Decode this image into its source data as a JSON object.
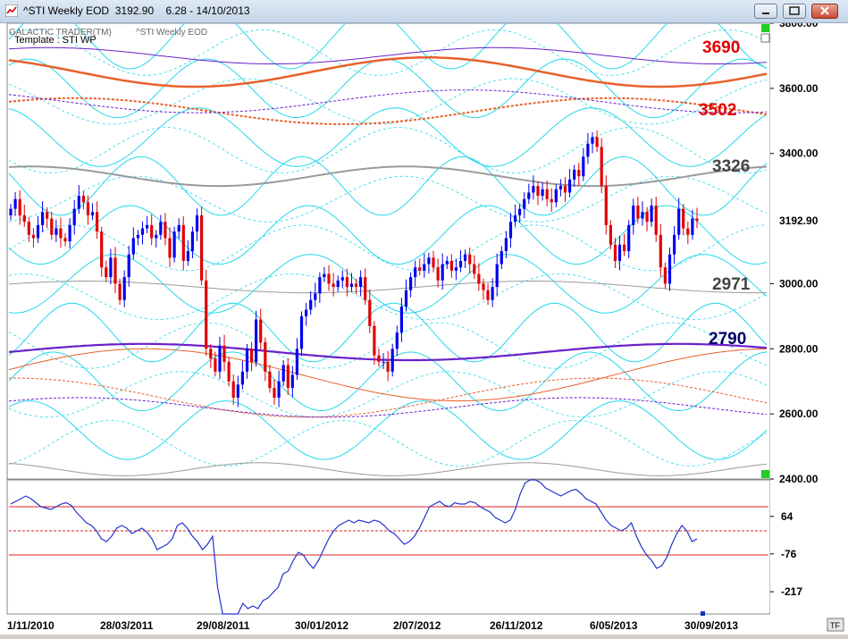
{
  "window": {
    "title": "^STI Weekly EOD  3192.90    6.28 - 14/10/2013",
    "minimize_label": "minimize",
    "maximize_label": "maximize",
    "close_label": "close"
  },
  "chart_header": {
    "brand": "GALACTIC TRADER(TM)",
    "series_name": "^STI Weekly EOD",
    "template": "Template : STI WP"
  },
  "colors": {
    "up_bar": "#0000ee",
    "down_bar": "#e00000",
    "cycle_cyan": "#22d8ea",
    "orange": "#e8602a",
    "purple": "#6a1fc9",
    "gray": "#9a9a9a",
    "osc_line": "#2233cc",
    "ob_os_line": "#dd2222",
    "accent_green": "#22cc22"
  },
  "labels": {
    "l3690": "3690",
    "l3502": "3502",
    "l3326": "3326",
    "l2971": "2971",
    "l2790": "2790",
    "price_current": "3192.90",
    "corner_tf": "TF"
  },
  "chart_data": [
    {
      "type": "candlestick",
      "series_name": "^STI Weekly EOD",
      "ylim": [
        2400,
        3800
      ],
      "y_ticks": [
        "3800.00",
        "3600.00",
        "3400.00",
        "3000.00",
        "2800.00",
        "2600.00",
        "2400.00"
      ],
      "x_tick_labels": [
        "1/11/2010",
        "28/03/2011",
        "29/08/2011",
        "30/01/2012",
        "2/07/2012",
        "26/11/2012",
        "6/05/2013",
        "30/09/2013"
      ],
      "last_close": 3192.9,
      "change": 6.28,
      "date": "14/10/2013",
      "levels": [
        3690,
        3502,
        3326,
        2971,
        2790
      ],
      "closes": [
        3230,
        3260,
        3210,
        3190,
        3150,
        3140,
        3180,
        3220,
        3200,
        3150,
        3170,
        3140,
        3130,
        3180,
        3230,
        3270,
        3250,
        3210,
        3220,
        3160,
        3050,
        3020,
        3080,
        3000,
        2950,
        3020,
        3090,
        3140,
        3150,
        3170,
        3180,
        3140,
        3150,
        3190,
        3140,
        3080,
        3160,
        3180,
        3070,
        3100,
        3160,
        3210,
        3010,
        2800,
        2770,
        2730,
        2810,
        2760,
        2700,
        2650,
        2690,
        2730,
        2800,
        2760,
        2890,
        2820,
        2730,
        2680,
        2650,
        2700,
        2750,
        2680,
        2720,
        2800,
        2900,
        2920,
        2950,
        2970,
        3020,
        3030,
        3000,
        2990,
        3010,
        3020,
        2990,
        3000,
        2990,
        3020,
        2950,
        2870,
        2780,
        2760,
        2760,
        2730,
        2800,
        2850,
        2930,
        2980,
        3020,
        3050,
        3040,
        3060,
        3080,
        3050,
        3010,
        3060,
        3070,
        3040,
        3050,
        3070,
        3090,
        3060,
        3030,
        3000,
        2980,
        2950,
        2990,
        3060,
        3100,
        3140,
        3190,
        3210,
        3230,
        3260,
        3280,
        3300,
        3270,
        3290,
        3260,
        3250,
        3290,
        3300,
        3280,
        3320,
        3350,
        3330,
        3390,
        3430,
        3450,
        3420,
        3300,
        3180,
        3120,
        3070,
        3120,
        3100,
        3180,
        3240,
        3200,
        3220,
        3190,
        3240,
        3150,
        3050,
        3000,
        3090,
        3150,
        3230,
        3170,
        3150,
        3200,
        3193
      ],
      "oscillator": {
        "ylim": [
          -300,
          200
        ],
        "y_ticks": [
          "64",
          "-76",
          "-217"
        ],
        "upper_band": 100,
        "lower_band": -80,
        "values": [
          110,
          120,
          130,
          140,
          130,
          115,
          100,
          95,
          90,
          100,
          110,
          115,
          105,
          80,
          60,
          40,
          30,
          10,
          -20,
          -30,
          -10,
          20,
          30,
          20,
          0,
          10,
          20,
          5,
          -20,
          -60,
          -50,
          -40,
          -20,
          30,
          40,
          20,
          -10,
          -30,
          -60,
          -40,
          -10,
          -200,
          -300,
          -380,
          -340,
          -300,
          -260,
          -280,
          -270,
          -280,
          -250,
          -240,
          -220,
          -200,
          -150,
          -140,
          -100,
          -70,
          -80,
          -110,
          -130,
          -100,
          -60,
          -20,
          10,
          30,
          40,
          50,
          40,
          50,
          45,
          40,
          50,
          45,
          30,
          10,
          0,
          -20,
          -40,
          -30,
          -10,
          20,
          60,
          100,
          110,
          120,
          105,
          100,
          115,
          110,
          110,
          120,
          115,
          100,
          90,
          80,
          60,
          50,
          40,
          50,
          90,
          150,
          190,
          200,
          210,
          190,
          170,
          160,
          150,
          140,
          150,
          160,
          165,
          150,
          130,
          120,
          110,
          80,
          50,
          30,
          20,
          10,
          20,
          40,
          -10,
          -50,
          -80,
          -100,
          -130,
          -120,
          -90,
          -40,
          0,
          30,
          10,
          -30,
          -20
        ]
      }
    }
  ]
}
